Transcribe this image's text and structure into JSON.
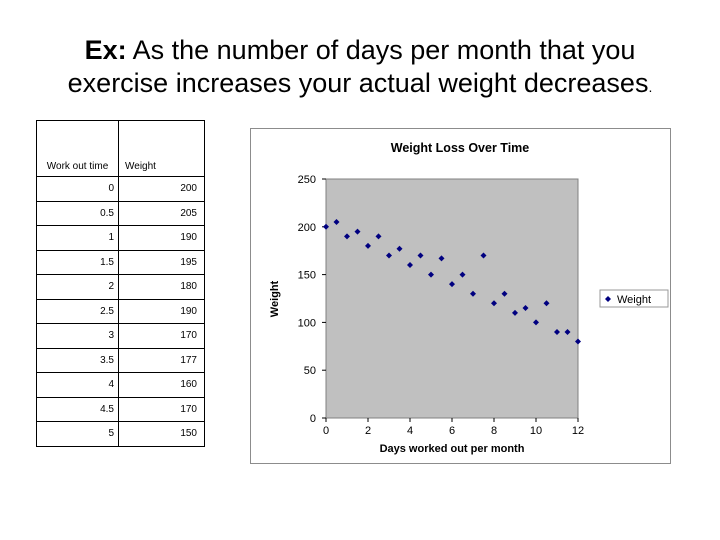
{
  "title": {
    "prefix": "Ex:",
    "line1": "As the number of days per month that you",
    "line2": "exercise increases your actual weight decreases",
    "period": "."
  },
  "table": {
    "headers": [
      "Work out time",
      "Weight"
    ],
    "rows": [
      [
        "0",
        "200"
      ],
      [
        "0.5",
        "205"
      ],
      [
        "1",
        "190"
      ],
      [
        "1.5",
        "195"
      ],
      [
        "2",
        "180"
      ],
      [
        "2.5",
        "190"
      ],
      [
        "3",
        "170"
      ],
      [
        "3.5",
        "177"
      ],
      [
        "4",
        "160"
      ],
      [
        "4.5",
        "170"
      ],
      [
        "5",
        "150"
      ]
    ]
  },
  "colors": {
    "plot_bg": "#c0c0c0",
    "marker": "#000080",
    "frame": "#8c8c8c"
  },
  "chart_data": {
    "type": "scatter",
    "title": "Weight Loss Over Time",
    "xlabel": "Days worked out per month",
    "ylabel": "Weight",
    "xlim": [
      0,
      12
    ],
    "ylim": [
      0,
      250
    ],
    "xticks": [
      0,
      2,
      4,
      6,
      8,
      10,
      12
    ],
    "yticks": [
      0,
      50,
      100,
      150,
      200,
      250
    ],
    "legend": "right",
    "series": [
      {
        "name": "Weight",
        "x": [
          0,
          0.5,
          1,
          1.5,
          2,
          2.5,
          3,
          3.5,
          4,
          4.5,
          5,
          5.5,
          6,
          6.5,
          7,
          7.5,
          8,
          8.5,
          9,
          9.5,
          10,
          10.5,
          11,
          11.5,
          12
        ],
        "y": [
          200,
          205,
          190,
          195,
          180,
          190,
          170,
          177,
          160,
          170,
          150,
          167,
          140,
          150,
          130,
          170,
          120,
          130,
          110,
          115,
          100,
          120,
          90,
          90,
          80
        ]
      }
    ]
  }
}
